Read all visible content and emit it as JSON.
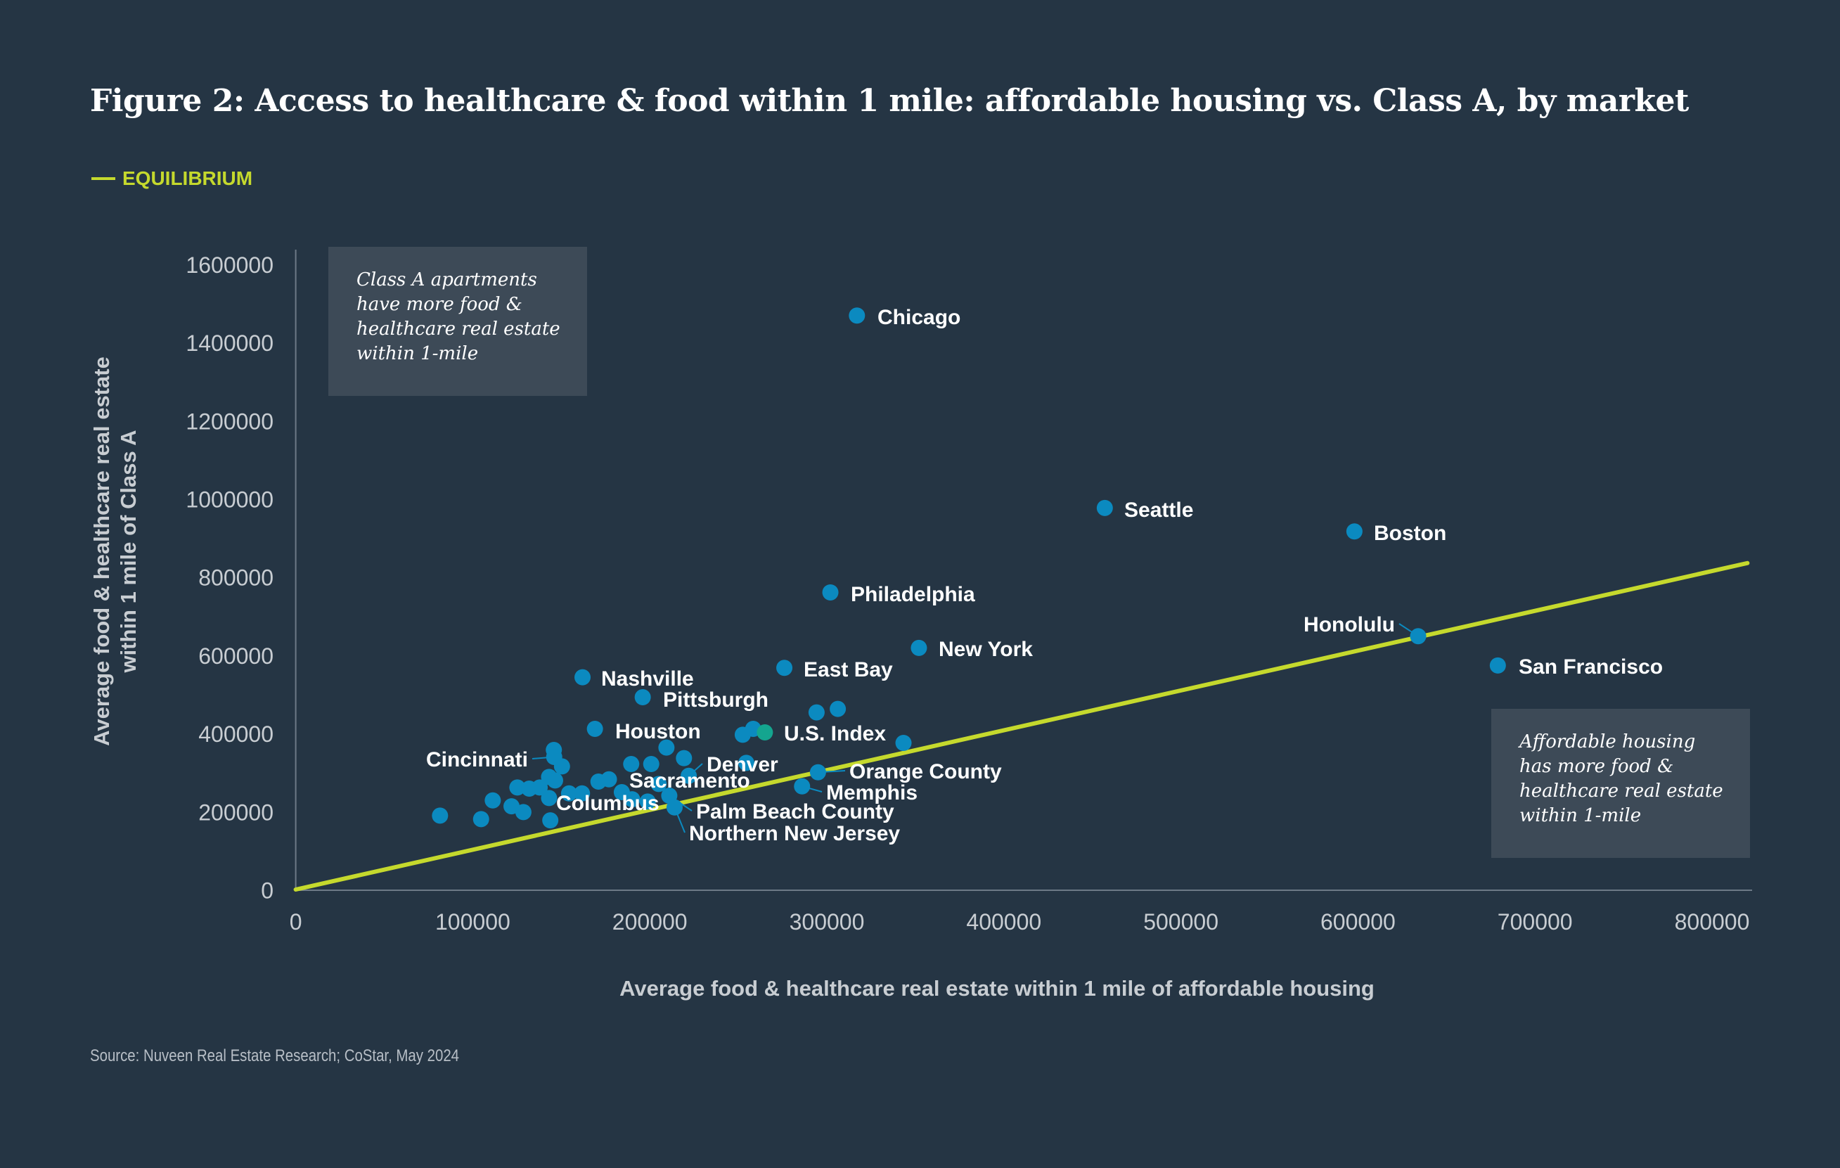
{
  "title": "Figure 2: Access to healthcare & food within 1 mile: affordable housing vs. Class A, by market",
  "legend": {
    "label": "EQUILIBRIUM",
    "color": "#c5d92d"
  },
  "annotations": {
    "upper_left": [
      "Class A apartments",
      "have more food &",
      "healthcare real estate",
      "within 1-mile"
    ],
    "lower_right": [
      "Affordable housing",
      "has more food &",
      "healthcare real estate",
      "within 1-mile"
    ]
  },
  "source": "Source: Nuveen Real Estate Research; CoStar, May 2024",
  "colors": {
    "background": "#253544",
    "point": "#0b8ac0",
    "index_point": "#14a58f",
    "equilibrium": "#c5d92d",
    "annotation_box": "#3d4a57"
  },
  "chart_data": {
    "type": "scatter",
    "xlabel": "Average food & healthcare real estate within 1 mile of affordable housing",
    "ylabel": [
      "Average food & healthcare real estate",
      "within 1 mile of Class A"
    ],
    "xlim": [
      0,
      820000
    ],
    "ylim": [
      0,
      1600000
    ],
    "xticks": [
      "0",
      "100000",
      "200000",
      "300000",
      "400000",
      "500000",
      "600000",
      "700000",
      "800000"
    ],
    "yticks": [
      "0",
      "200000",
      "400000",
      "600000",
      "800000",
      "1000000",
      "1200000",
      "1400000",
      "1600000"
    ],
    "grid": false,
    "legend_position": "top-left",
    "equilibrium_line": [
      [
        0,
        0
      ],
      [
        820000,
        835000
      ]
    ],
    "labeled_points": [
      {
        "name": "Chicago",
        "x": 317000,
        "y": 1468000
      },
      {
        "name": "Seattle",
        "x": 457000,
        "y": 976000
      },
      {
        "name": "Boston",
        "x": 598000,
        "y": 916000
      },
      {
        "name": "Philadelphia",
        "x": 302000,
        "y": 760000
      },
      {
        "name": "New York",
        "x": 352000,
        "y": 618000
      },
      {
        "name": "Honolulu",
        "x": 634000,
        "y": 648000
      },
      {
        "name": "San Francisco",
        "x": 679000,
        "y": 573000
      },
      {
        "name": "East Bay",
        "x": 276000,
        "y": 567000
      },
      {
        "name": "Nashville",
        "x": 162000,
        "y": 543000
      },
      {
        "name": "Pittsburgh",
        "x": 196000,
        "y": 492000
      },
      {
        "name": "Houston",
        "x": 169000,
        "y": 411000
      },
      {
        "name": "U.S. Index",
        "x": 265000,
        "y": 402000,
        "highlight": true
      },
      {
        "name": "Cincinnati",
        "x": 146000,
        "y": 339000
      },
      {
        "name": "Denver",
        "x": 222000,
        "y": 291000
      },
      {
        "name": "Sacramento",
        "x": 205000,
        "y": 270000
      },
      {
        "name": "Columbus",
        "x": 190000,
        "y": 231000
      },
      {
        "name": "Palm Beach County",
        "x": 211000,
        "y": 240000
      },
      {
        "name": "Northern New Jersey",
        "x": 214000,
        "y": 210000
      },
      {
        "name": "Orange County",
        "x": 295000,
        "y": 300000
      },
      {
        "name": "Memphis",
        "x": 286000,
        "y": 264000
      }
    ],
    "unlabeled_points": [
      [
        81500,
        189000
      ],
      [
        104700,
        180000
      ],
      [
        111300,
        228000
      ],
      [
        121900,
        213000
      ],
      [
        128600,
        198000
      ],
      [
        125200,
        261000
      ],
      [
        131900,
        258000
      ],
      [
        137800,
        261000
      ],
      [
        143100,
        288000
      ],
      [
        145800,
        357000
      ],
      [
        150400,
        315000
      ],
      [
        146500,
        279000
      ],
      [
        143100,
        234000
      ],
      [
        143800,
        177000
      ],
      [
        154400,
        246000
      ],
      [
        161700,
        246000
      ],
      [
        171000,
        276000
      ],
      [
        176900,
        282000
      ],
      [
        189500,
        321000
      ],
      [
        200800,
        321000
      ],
      [
        209400,
        363000
      ],
      [
        219300,
        336000
      ],
      [
        198800,
        225000
      ],
      [
        252500,
        396000
      ],
      [
        258400,
        411000
      ],
      [
        294200,
        453000
      ],
      [
        306200,
        462000
      ],
      [
        343300,
        375000
      ],
      [
        254500,
        324000
      ],
      [
        184200,
        249000
      ]
    ]
  }
}
